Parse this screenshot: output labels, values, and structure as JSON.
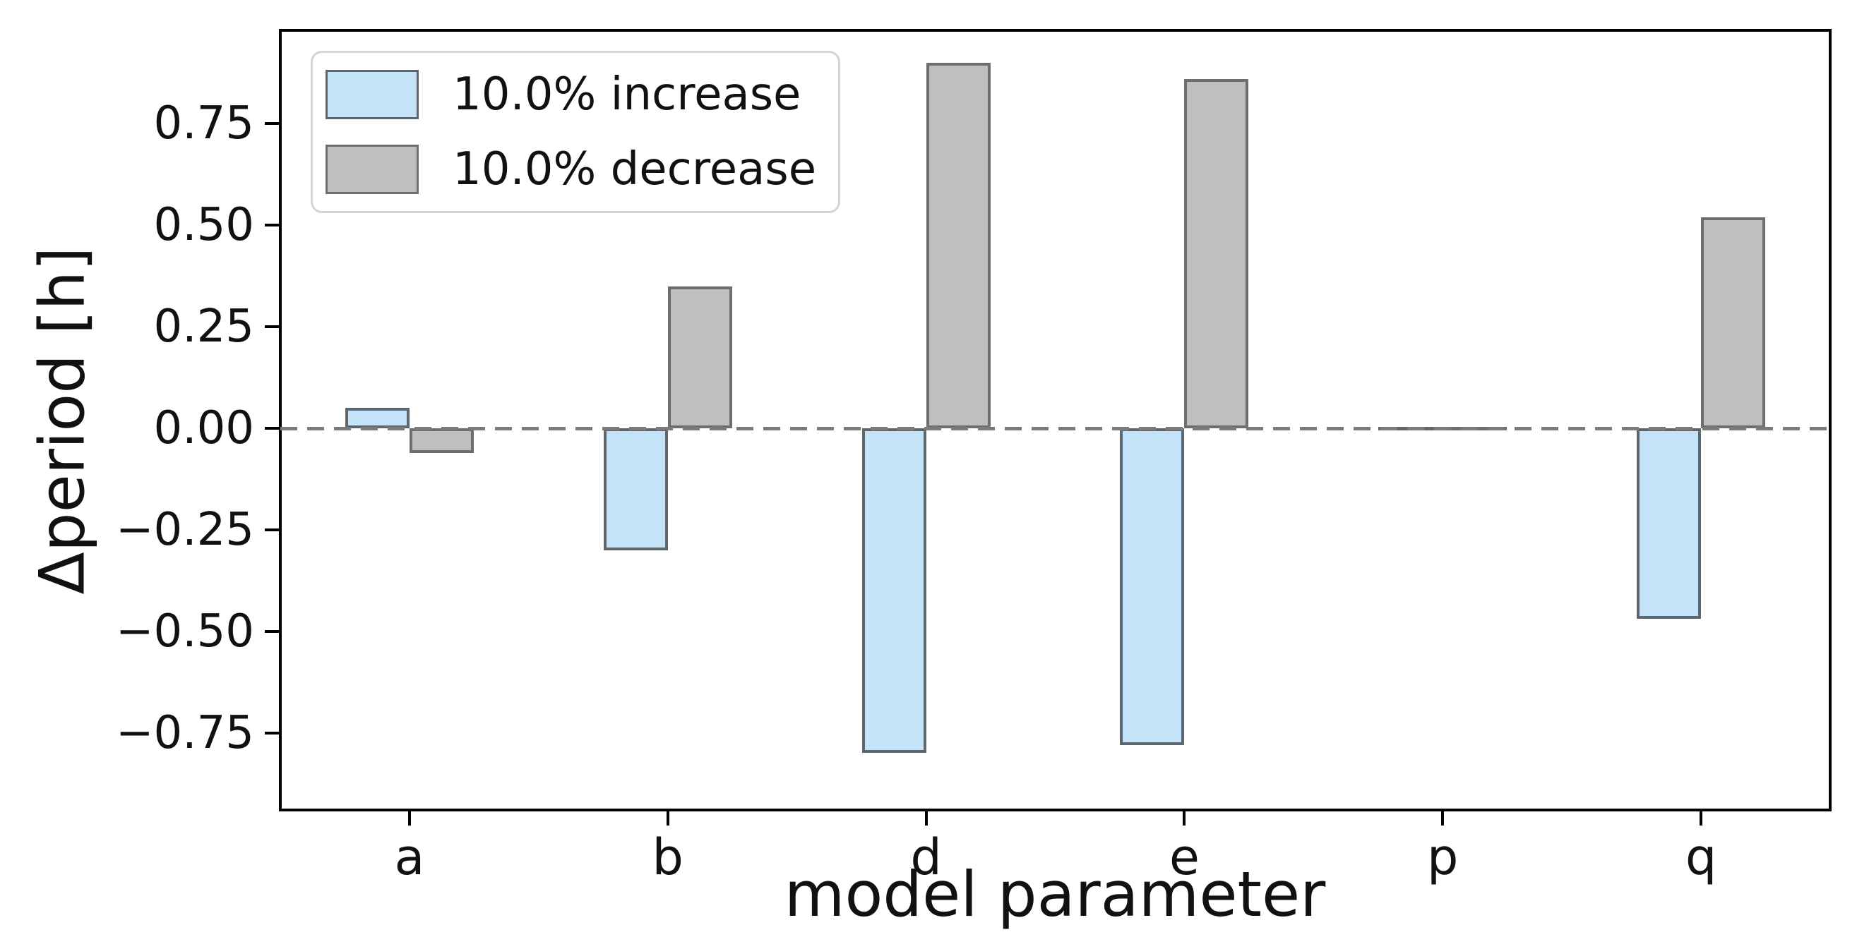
{
  "chart_data": {
    "type": "bar",
    "title": "",
    "xlabel": "model parameter",
    "ylabel": "Δperiod [h]",
    "categories": [
      "a",
      "b",
      "d",
      "e",
      "p",
      "q"
    ],
    "series": [
      {
        "name": "10.0% increase",
        "color": "#c4e2f8",
        "edge_color": "#5f676e",
        "values": [
          0.05,
          -0.3,
          -0.8,
          -0.78,
          0.0,
          -0.47
        ]
      },
      {
        "name": "10.0% decrease",
        "color": "#bfbfbf",
        "edge_color": "#6e6e6e",
        "values": [
          -0.06,
          0.35,
          0.9,
          0.86,
          0.0,
          0.52
        ]
      }
    ],
    "bar_width": 0.25,
    "ylim": [
      -0.94,
      0.98
    ],
    "yticks": [
      0.75,
      0.5,
      0.25,
      0.0,
      -0.25,
      -0.5,
      -0.75
    ],
    "ytick_labels": [
      "0.75",
      "0.50",
      "0.25",
      "0.00",
      "−0.25",
      "−0.50",
      "−0.75"
    ],
    "zero_line": {
      "style": "dashed",
      "color": "#7a7a7a"
    },
    "grid": false,
    "legend_position": "upper left",
    "background_color": "#ffffff",
    "spine_color": "#000000"
  }
}
